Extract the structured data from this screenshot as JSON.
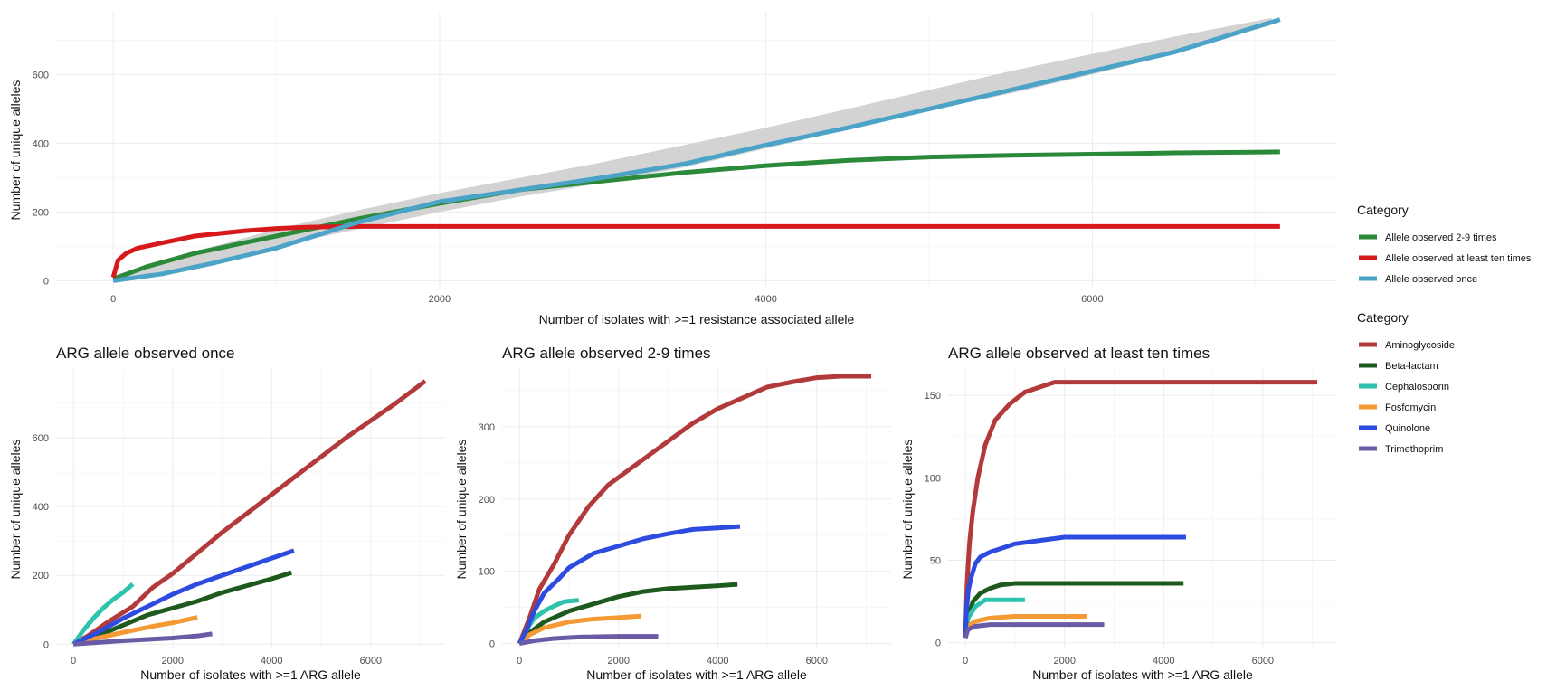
{
  "chart_data": [
    {
      "type": "line",
      "title": "",
      "xlabel": "Number of isolates with >=1 resistance associated allele",
      "ylabel": "Number of unique alleles",
      "xlim": [
        -350,
        7500
      ],
      "ylim": [
        -20,
        780
      ],
      "x_ticks": [
        0,
        2000,
        4000,
        6000
      ],
      "y_ticks": [
        0,
        200,
        400,
        600
      ],
      "grid": true,
      "legend": {
        "title": "Category",
        "position": "right"
      },
      "band": {
        "color": "#d3d3d3",
        "x": [
          0,
          500,
          1000,
          1500,
          2000,
          2500,
          3000,
          3500,
          4000,
          4500,
          5000,
          5500,
          6000,
          6500,
          7100
        ],
        "lower": [
          0,
          45,
          100,
          150,
          200,
          245,
          285,
          330,
          385,
          440,
          495,
          545,
          600,
          660,
          745
        ],
        "upper": [
          15,
          85,
          150,
          205,
          255,
          300,
          345,
          395,
          445,
          500,
          555,
          610,
          660,
          710,
          765
        ]
      },
      "series": [
        {
          "name": "Allele observed 2-9 times",
          "color": "#2a8a3a",
          "x": [
            0,
            200,
            500,
            800,
            1000,
            1500,
            2000,
            2500,
            3000,
            3500,
            4000,
            4500,
            5000,
            5500,
            6000,
            6500,
            7150
          ],
          "y": [
            5,
            40,
            80,
            110,
            130,
            180,
            225,
            265,
            290,
            315,
            335,
            350,
            360,
            365,
            368,
            372,
            375
          ]
        },
        {
          "name": "Allele observed at least ten times",
          "color": "#d7191c",
          "x": [
            0,
            30,
            80,
            150,
            300,
            500,
            800,
            1000,
            1200,
            1500,
            1800,
            3000,
            5000,
            7150
          ],
          "y": [
            10,
            60,
            80,
            95,
            110,
            130,
            145,
            152,
            156,
            158,
            158,
            158,
            158,
            158
          ]
        },
        {
          "name": "Allele observed once",
          "color": "#4ba3c7",
          "x": [
            0,
            300,
            600,
            1000,
            1500,
            2000,
            2500,
            3000,
            3500,
            4000,
            4500,
            5000,
            5500,
            6000,
            6500,
            7150
          ],
          "y": [
            0,
            20,
            50,
            95,
            170,
            230,
            265,
            300,
            340,
            395,
            445,
            500,
            555,
            610,
            665,
            760
          ]
        }
      ]
    },
    {
      "type": "line",
      "title": "ARG allele observed once",
      "xlabel": "Number of isolates with >=1 ARG allele",
      "ylabel": "Number of unique alleles",
      "xlim": [
        -350,
        7500
      ],
      "ylim": [
        -15,
        800
      ],
      "x_ticks": [
        0,
        2000,
        4000,
        6000
      ],
      "y_ticks": [
        0,
        200,
        400,
        600
      ],
      "grid": true,
      "series": [
        {
          "name": "Aminoglycoside",
          "color": "#b23a3a",
          "x": [
            0,
            300,
            700,
            1200,
            1600,
            2000,
            2500,
            3000,
            3500,
            4000,
            4500,
            5000,
            5500,
            6000,
            6500,
            7100
          ],
          "y": [
            0,
            25,
            65,
            110,
            165,
            205,
            265,
            325,
            380,
            435,
            490,
            545,
            600,
            650,
            700,
            765
          ]
        },
        {
          "name": "Beta-lactam",
          "color": "#1e5a1e",
          "x": [
            0,
            500,
            1000,
            1500,
            2000,
            2500,
            3000,
            3500,
            4000,
            4400
          ],
          "y": [
            0,
            25,
            55,
            85,
            105,
            125,
            150,
            170,
            190,
            208
          ]
        },
        {
          "name": "Cephalosporin",
          "color": "#2fc2ad",
          "x": [
            0,
            200,
            400,
            600,
            800,
            1000,
            1200
          ],
          "y": [
            0,
            40,
            75,
            105,
            130,
            150,
            175
          ]
        },
        {
          "name": "Fosfomycin",
          "color": "#f39a35",
          "x": [
            0,
            400,
            800,
            1200,
            1600,
            2000,
            2500
          ],
          "y": [
            0,
            15,
            28,
            40,
            52,
            62,
            78
          ]
        },
        {
          "name": "Quinolone",
          "color": "#2e4be0",
          "x": [
            0,
            500,
            1000,
            1500,
            2000,
            2500,
            3000,
            3500,
            4000,
            4450
          ],
          "y": [
            0,
            35,
            75,
            110,
            145,
            175,
            200,
            225,
            250,
            272
          ]
        },
        {
          "name": "Trimethoprim",
          "color": "#6b5aa6",
          "x": [
            0,
            500,
            1000,
            1500,
            2000,
            2500,
            2800
          ],
          "y": [
            0,
            5,
            10,
            14,
            18,
            24,
            30
          ]
        }
      ]
    },
    {
      "type": "line",
      "title": "ARG allele observed 2-9 times",
      "xlabel": "Number of isolates with >=1 ARG allele",
      "ylabel": "Number of unique alleles",
      "xlim": [
        -350,
        7500
      ],
      "ylim": [
        -8,
        380
      ],
      "x_ticks": [
        0,
        2000,
        4000,
        6000
      ],
      "y_ticks": [
        0,
        100,
        200,
        300
      ],
      "grid": true,
      "series": [
        {
          "name": "Aminoglycoside",
          "color": "#b23a3a",
          "x": [
            0,
            200,
            400,
            700,
            1000,
            1400,
            1800,
            2200,
            2600,
            3000,
            3500,
            4000,
            4500,
            5000,
            5500,
            6000,
            6500,
            7100
          ],
          "y": [
            0,
            35,
            75,
            110,
            150,
            190,
            220,
            240,
            260,
            280,
            305,
            325,
            340,
            355,
            362,
            368,
            370,
            370
          ]
        },
        {
          "name": "Beta-lactam",
          "color": "#1e5a1e",
          "x": [
            0,
            200,
            500,
            1000,
            1500,
            2000,
            2500,
            3000,
            3500,
            4000,
            4400
          ],
          "y": [
            0,
            15,
            30,
            45,
            55,
            65,
            72,
            76,
            78,
            80,
            82
          ]
        },
        {
          "name": "Cephalosporin",
          "color": "#2fc2ad",
          "x": [
            0,
            150,
            300,
            500,
            700,
            900,
            1200
          ],
          "y": [
            0,
            20,
            35,
            45,
            52,
            58,
            60
          ]
        },
        {
          "name": "Fosfomycin",
          "color": "#f39a35",
          "x": [
            0,
            200,
            500,
            1000,
            1500,
            2000,
            2450
          ],
          "y": [
            0,
            12,
            22,
            30,
            34,
            36,
            38
          ]
        },
        {
          "name": "Quinolone",
          "color": "#2e4be0",
          "x": [
            0,
            150,
            300,
            500,
            800,
            1000,
            1500,
            2000,
            2500,
            3000,
            3500,
            4000,
            4450
          ],
          "y": [
            0,
            20,
            45,
            70,
            90,
            105,
            125,
            135,
            145,
            152,
            158,
            160,
            162
          ]
        },
        {
          "name": "Trimethoprim",
          "color": "#6b5aa6",
          "x": [
            0,
            300,
            700,
            1200,
            2000,
            2800
          ],
          "y": [
            0,
            4,
            7,
            9,
            10,
            10
          ]
        }
      ]
    },
    {
      "type": "line",
      "title": "ARG allele observed at least ten times",
      "xlabel": "Number of isolates with >=1 ARG allele",
      "ylabel": "Number of unique alleles",
      "xlim": [
        -350,
        7500
      ],
      "ylim": [
        -4,
        166
      ],
      "x_ticks": [
        0,
        2000,
        4000,
        6000
      ],
      "y_ticks": [
        0,
        50,
        100,
        150
      ],
      "grid": true,
      "series": [
        {
          "name": "Aminoglycoside",
          "color": "#b23a3a",
          "x": [
            0,
            30,
            80,
            150,
            250,
            400,
            600,
            900,
            1200,
            1500,
            1800,
            3000,
            5000,
            7100
          ],
          "y": [
            5,
            35,
            60,
            80,
            100,
            120,
            135,
            145,
            152,
            155,
            158,
            158,
            158,
            158
          ]
        },
        {
          "name": "Beta-lactam",
          "color": "#1e5a1e",
          "x": [
            0,
            50,
            150,
            300,
            500,
            700,
            1000,
            2000,
            3000,
            4400
          ],
          "y": [
            3,
            15,
            25,
            30,
            33,
            35,
            36,
            36,
            36,
            36
          ]
        },
        {
          "name": "Cephalosporin",
          "color": "#2fc2ad",
          "x": [
            0,
            50,
            200,
            400,
            1200
          ],
          "y": [
            3,
            15,
            22,
            26,
            26
          ]
        },
        {
          "name": "Fosfomycin",
          "color": "#f39a35",
          "x": [
            0,
            50,
            200,
            500,
            1000,
            2450
          ],
          "y": [
            3,
            10,
            13,
            15,
            16,
            16
          ]
        },
        {
          "name": "Quinolone",
          "color": "#2e4be0",
          "x": [
            0,
            20,
            60,
            120,
            200,
            300,
            500,
            800,
            1000,
            1500,
            2000,
            3000,
            4450
          ],
          "y": [
            3,
            20,
            32,
            40,
            48,
            52,
            55,
            58,
            60,
            62,
            64,
            64,
            64
          ]
        },
        {
          "name": "Trimethoprim",
          "color": "#6b5aa6",
          "x": [
            0,
            50,
            200,
            500,
            1000,
            2800
          ],
          "y": [
            3,
            8,
            10,
            11,
            11,
            11
          ]
        }
      ]
    }
  ],
  "legends": [
    {
      "title": "Category",
      "items": [
        {
          "label": "Allele observed 2-9 times",
          "color": "#2a8a3a"
        },
        {
          "label": "Allele observed at least ten times",
          "color": "#d7191c"
        },
        {
          "label": "Allele observed once",
          "color": "#4ba3c7"
        }
      ]
    },
    {
      "title": "Category",
      "items": [
        {
          "label": "Aminoglycoside",
          "color": "#b23a3a"
        },
        {
          "label": "Beta-lactam",
          "color": "#1e5a1e"
        },
        {
          "label": "Cephalosporin",
          "color": "#2fc2ad"
        },
        {
          "label": "Fosfomycin",
          "color": "#f39a35"
        },
        {
          "label": "Quinolone",
          "color": "#2e4be0"
        },
        {
          "label": "Trimethoprim",
          "color": "#6b5aa6"
        }
      ]
    }
  ]
}
